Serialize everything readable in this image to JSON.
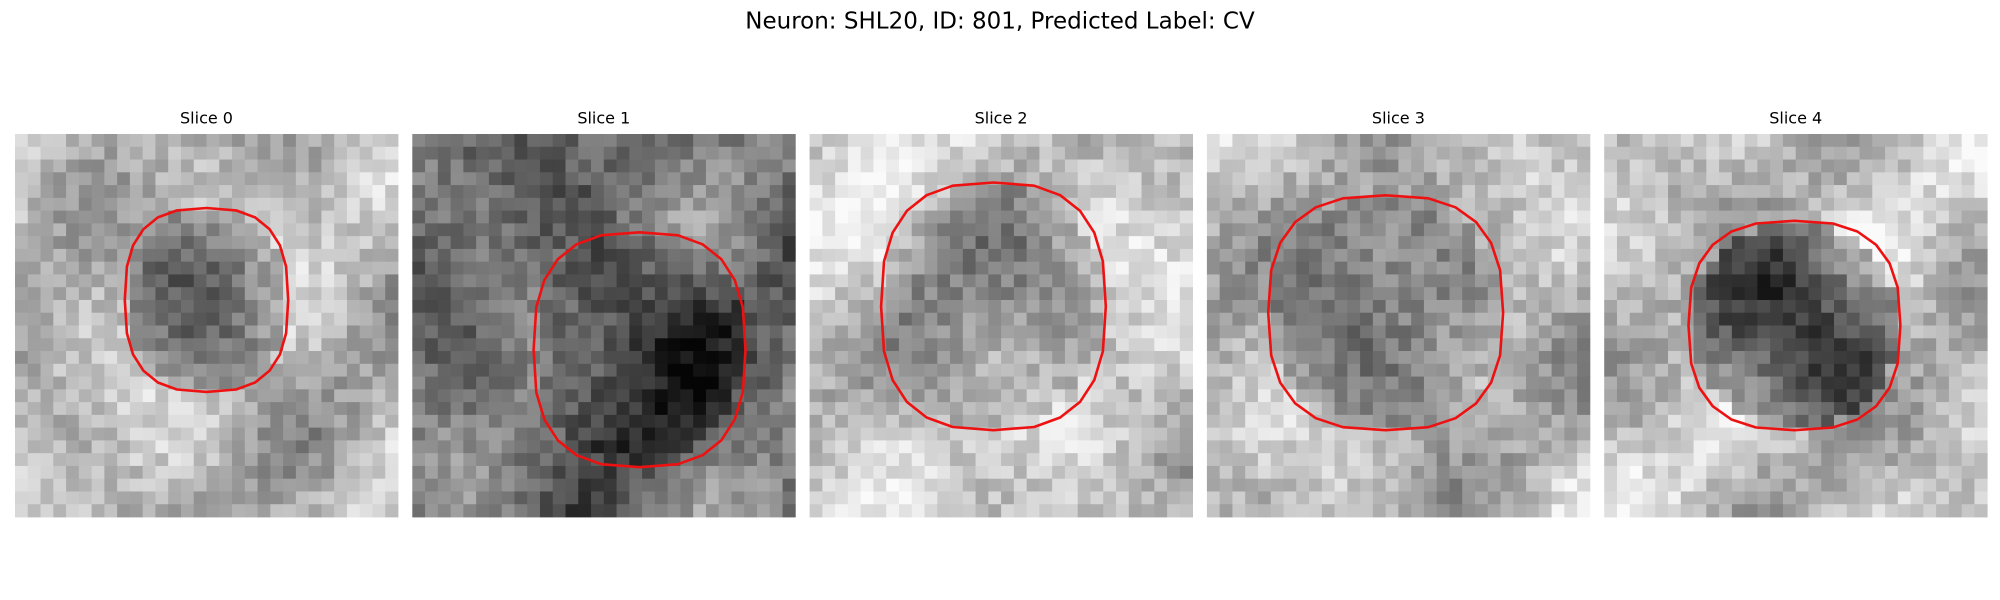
{
  "title": "Neuron: SHL20, ID: 801, Predicted Label: CV",
  "panels": [
    {
      "title": "Slice 0"
    },
    {
      "title": "Slice 1"
    },
    {
      "title": "Slice 2"
    },
    {
      "title": "Slice 3"
    },
    {
      "title": "Slice 4"
    }
  ]
}
